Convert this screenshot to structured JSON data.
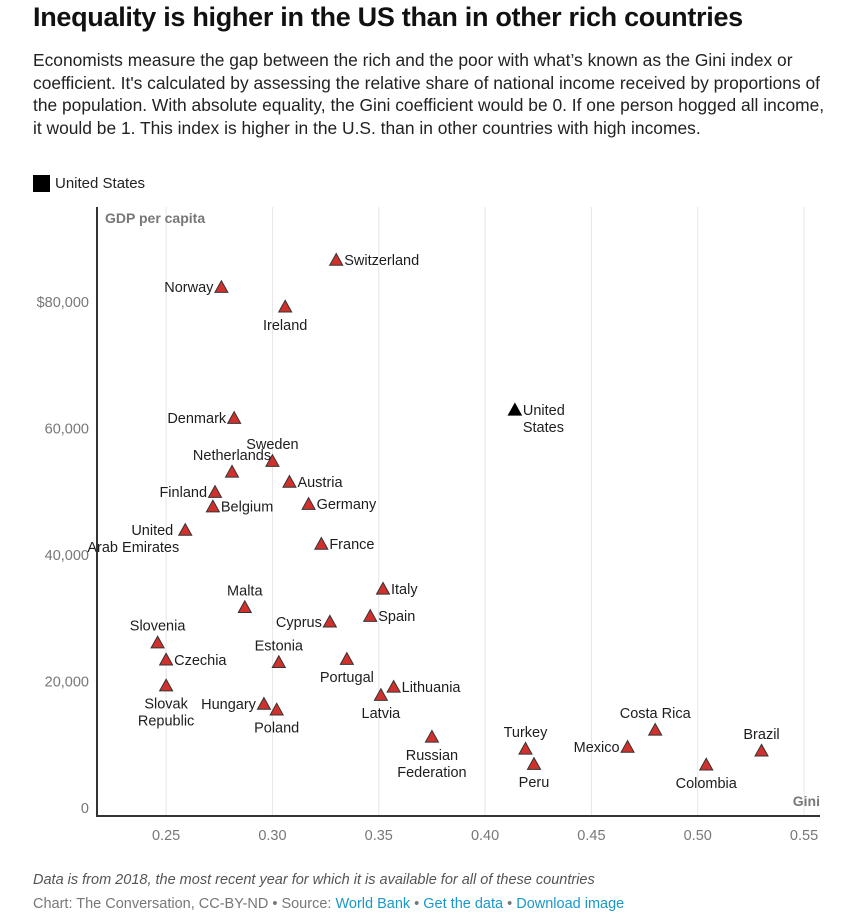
{
  "title": "Inequality is higher in the US than in other rich countries",
  "description": "Economists measure the gap between the rich and the poor with what’s known as the Gini index or coefficient. It's calculated by assessing the relative share of national income received by proportions of the population. With absolute equality, the Gini coefficient would be 0. If one person hogged all income, it would be 1. This index is higher in the U.S. than in other countries with high incomes.",
  "legend": {
    "label": "United States",
    "color": "#000000"
  },
  "colors": {
    "highlight": "#000000",
    "other": "#d0312d",
    "stroke": "#333333",
    "grid": "#e6e6e6",
    "axis": "#333333",
    "link": "#1a98c9"
  },
  "footer": {
    "note": "Data is from 2018, the most recent year for which it is available for all of these countries",
    "credit_prefix": "Chart: The Conversation, CC-BY-ND • Source: ",
    "source_link": "World Bank",
    "sep1": " • ",
    "get_data_link": "Get the data",
    "sep2": " • ",
    "download_link": "Download image"
  },
  "chart_data": {
    "type": "scatter",
    "title": "Inequality is higher in the US than in other rich countries",
    "xlabel": "Gini",
    "ylabel": "GDP per capita",
    "xlim": [
      0.2175,
      0.5575
    ],
    "ylim": [
      0,
      95000
    ],
    "x_ticks": [
      0.25,
      0.3,
      0.35,
      0.4,
      0.45,
      0.5,
      0.55
    ],
    "x_tick_labels": [
      "0.25",
      "0.30",
      "0.35",
      "0.40",
      "0.45",
      "0.50",
      "0.55"
    ],
    "y_ticks": [
      0,
      20000,
      40000,
      60000,
      80000
    ],
    "y_tick_labels": [
      "0",
      "20,000",
      "40,000",
      "60,000",
      "$80,000"
    ],
    "grid": "vertical",
    "legend_position": "top-left",
    "points": [
      {
        "name": "Switzerland",
        "label": [
          "Switzerland"
        ],
        "gini": 0.33,
        "gdp": 87900,
        "highlight": false,
        "pos": "right"
      },
      {
        "name": "Norway",
        "label": [
          "Norway"
        ],
        "gini": 0.276,
        "gdp": 83600,
        "highlight": false,
        "pos": "left"
      },
      {
        "name": "Ireland",
        "label": [
          "Ireland"
        ],
        "gini": 0.306,
        "gdp": 80500,
        "highlight": false,
        "pos": "below"
      },
      {
        "name": "Denmark",
        "label": [
          "Denmark"
        ],
        "gini": 0.282,
        "gdp": 62900,
        "highlight": false,
        "pos": "left"
      },
      {
        "name": "United States",
        "label": [
          "United",
          "States"
        ],
        "gini": 0.414,
        "gdp": 64200,
        "highlight": true,
        "pos": "right"
      },
      {
        "name": "Sweden",
        "label": [
          "Sweden"
        ],
        "gini": 0.3,
        "gdp": 56100,
        "highlight": false,
        "pos": "above"
      },
      {
        "name": "Netherlands",
        "label": [
          "Netherlands"
        ],
        "gini": 0.281,
        "gdp": 54400,
        "highlight": false,
        "pos": "above"
      },
      {
        "name": "Austria",
        "label": [
          "Austria"
        ],
        "gini": 0.308,
        "gdp": 52800,
        "highlight": false,
        "pos": "right"
      },
      {
        "name": "Finland",
        "label": [
          "Finland"
        ],
        "gini": 0.273,
        "gdp": 51200,
        "highlight": false,
        "pos": "left"
      },
      {
        "name": "Belgium",
        "label": [
          "Belgium"
        ],
        "gini": 0.272,
        "gdp": 48900,
        "highlight": false,
        "pos": "right"
      },
      {
        "name": "Germany",
        "label": [
          "Germany"
        ],
        "gini": 0.317,
        "gdp": 49300,
        "highlight": false,
        "pos": "right"
      },
      {
        "name": "United Arab Emirates",
        "label": [
          "United",
          "Arab Emirates"
        ],
        "gini": 0.259,
        "gdp": 45200,
        "highlight": false,
        "pos": "left-two"
      },
      {
        "name": "France",
        "label": [
          "France"
        ],
        "gini": 0.323,
        "gdp": 43000,
        "highlight": false,
        "pos": "right"
      },
      {
        "name": "Italy",
        "label": [
          "Italy"
        ],
        "gini": 0.352,
        "gdp": 35900,
        "highlight": false,
        "pos": "right"
      },
      {
        "name": "Malta",
        "label": [
          "Malta"
        ],
        "gini": 0.287,
        "gdp": 33000,
        "highlight": false,
        "pos": "above"
      },
      {
        "name": "Spain",
        "label": [
          "Spain"
        ],
        "gini": 0.346,
        "gdp": 31600,
        "highlight": false,
        "pos": "right"
      },
      {
        "name": "Cyprus",
        "label": [
          "Cyprus"
        ],
        "gini": 0.327,
        "gdp": 30700,
        "highlight": false,
        "pos": "left"
      },
      {
        "name": "Slovenia",
        "label": [
          "Slovenia"
        ],
        "gini": 0.246,
        "gdp": 27400,
        "highlight": false,
        "pos": "above"
      },
      {
        "name": "Czechia",
        "label": [
          "Czechia"
        ],
        "gini": 0.25,
        "gdp": 24700,
        "highlight": false,
        "pos": "right"
      },
      {
        "name": "Estonia",
        "label": [
          "Estonia"
        ],
        "gini": 0.303,
        "gdp": 24300,
        "highlight": false,
        "pos": "above"
      },
      {
        "name": "Portugal",
        "label": [
          "Portugal"
        ],
        "gini": 0.335,
        "gdp": 24800,
        "highlight": false,
        "pos": "below"
      },
      {
        "name": "Slovak Republic",
        "label": [
          "Slovak",
          "Republic"
        ],
        "gini": 0.25,
        "gdp": 20600,
        "highlight": false,
        "pos": "below"
      },
      {
        "name": "Lithuania",
        "label": [
          "Lithuania"
        ],
        "gini": 0.357,
        "gdp": 20400,
        "highlight": false,
        "pos": "right"
      },
      {
        "name": "Latvia",
        "label": [
          "Latvia"
        ],
        "gini": 0.351,
        "gdp": 19100,
        "highlight": false,
        "pos": "below"
      },
      {
        "name": "Hungary",
        "label": [
          "Hungary"
        ],
        "gini": 0.296,
        "gdp": 17700,
        "highlight": false,
        "pos": "left"
      },
      {
        "name": "Poland",
        "label": [
          "Poland"
        ],
        "gini": 0.302,
        "gdp": 16800,
        "highlight": false,
        "pos": "below"
      },
      {
        "name": "Russian Federation",
        "label": [
          "Russian",
          "Federation"
        ],
        "gini": 0.375,
        "gdp": 12500,
        "highlight": false,
        "pos": "below"
      },
      {
        "name": "Costa Rica",
        "label": [
          "Costa Rica"
        ],
        "gini": 0.48,
        "gdp": 13600,
        "highlight": false,
        "pos": "above"
      },
      {
        "name": "Turkey",
        "label": [
          "Turkey"
        ],
        "gini": 0.419,
        "gdp": 10600,
        "highlight": false,
        "pos": "above"
      },
      {
        "name": "Mexico",
        "label": [
          "Mexico"
        ],
        "gini": 0.467,
        "gdp": 10900,
        "highlight": false,
        "pos": "left"
      },
      {
        "name": "Brazil",
        "label": [
          "Brazil"
        ],
        "gini": 0.53,
        "gdp": 10300,
        "highlight": false,
        "pos": "above"
      },
      {
        "name": "Peru",
        "label": [
          "Peru"
        ],
        "gini": 0.423,
        "gdp": 8200,
        "highlight": false,
        "pos": "below"
      },
      {
        "name": "Colombia",
        "label": [
          "Colombia"
        ],
        "gini": 0.504,
        "gdp": 8100,
        "highlight": false,
        "pos": "below"
      }
    ]
  }
}
